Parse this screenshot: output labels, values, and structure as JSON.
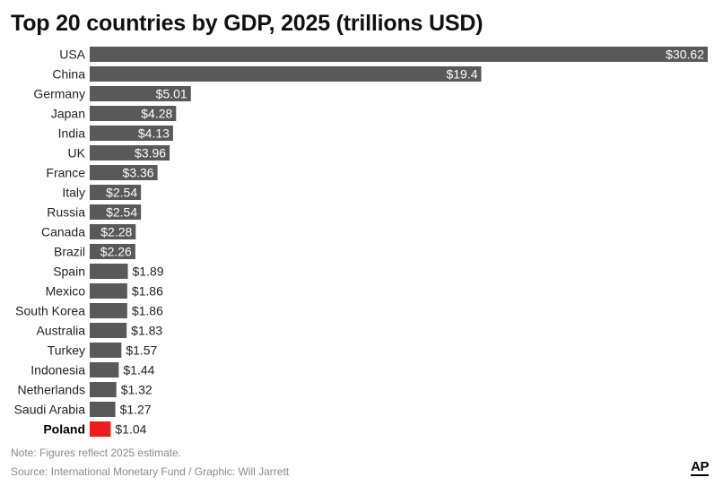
{
  "chart_data": {
    "type": "bar",
    "orientation": "horizontal",
    "title": "Top 20 countries by GDP, 2025 (trillions USD)",
    "categories": [
      "USA",
      "China",
      "Germany",
      "Japan",
      "India",
      "UK",
      "France",
      "Italy",
      "Russia",
      "Canada",
      "Brazil",
      "Spain",
      "Mexico",
      "South Korea",
      "Australia",
      "Turkey",
      "Indonesia",
      "Netherlands",
      "Saudi Arabia",
      "Poland"
    ],
    "values": [
      30.62,
      19.4,
      5.01,
      4.28,
      4.13,
      3.96,
      3.36,
      2.54,
      2.54,
      2.28,
      2.26,
      1.89,
      1.86,
      1.86,
      1.83,
      1.57,
      1.44,
      1.32,
      1.27,
      1.04
    ],
    "value_labels": [
      "$30.62",
      "$19.4",
      "$5.01",
      "$4.28",
      "$4.13",
      "$3.96",
      "$3.36",
      "$2.54",
      "$2.54",
      "$2.28",
      "$2.26",
      "$1.89",
      "$1.86",
      "$1.86",
      "$1.83",
      "$1.57",
      "$1.44",
      "$1.32",
      "$1.27",
      "$1.04"
    ],
    "highlight": "Poland",
    "colors": {
      "bar": "#595959",
      "highlight": "#ee1c1c"
    },
    "xlim": [
      0,
      30.62
    ],
    "grid": false,
    "legend": "none"
  },
  "footer": {
    "note": "Note: Figures reflect 2025 estimate.",
    "source": "Source: International Monetary Fund / Graphic: Will Jarrett",
    "logo": "AP"
  }
}
